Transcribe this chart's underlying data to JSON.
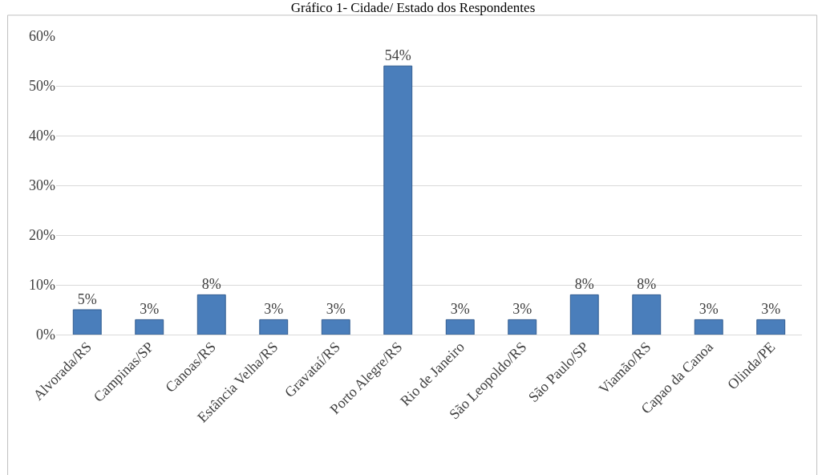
{
  "chart_data": {
    "type": "bar",
    "title": "Gráfico 1- Cidade/ Estado dos Respondentes",
    "categories": [
      "Alvorada/RS",
      "Campinas/SP",
      "Canoas/RS",
      "Estância Velha/RS",
      "Gravataí/RS",
      "Porto Alegre/RS",
      "Rio de Janeiro",
      "São Leopoldo/RS",
      "São Paulo/SP",
      "Viamão/RS",
      "Capao da Canoa",
      "Olinda/PE"
    ],
    "values": [
      5,
      3,
      8,
      3,
      3,
      54,
      3,
      3,
      8,
      8,
      3,
      3
    ],
    "value_labels": [
      "5%",
      "3%",
      "8%",
      "3%",
      "3%",
      "54%",
      "3%",
      "3%",
      "8%",
      "8%",
      "3%",
      "3%"
    ],
    "color": "#4a7ebb",
    "ylim": [
      0,
      60
    ],
    "yticks": [
      {
        "value": 0,
        "label": "0%"
      },
      {
        "value": 10,
        "label": "10%"
      },
      {
        "value": 20,
        "label": "20%"
      },
      {
        "value": 30,
        "label": "30%"
      },
      {
        "value": 40,
        "label": "40%"
      },
      {
        "value": 50,
        "label": "50%"
      },
      {
        "value": 60,
        "label": "60%"
      }
    ],
    "grid": "y",
    "legend": false
  }
}
